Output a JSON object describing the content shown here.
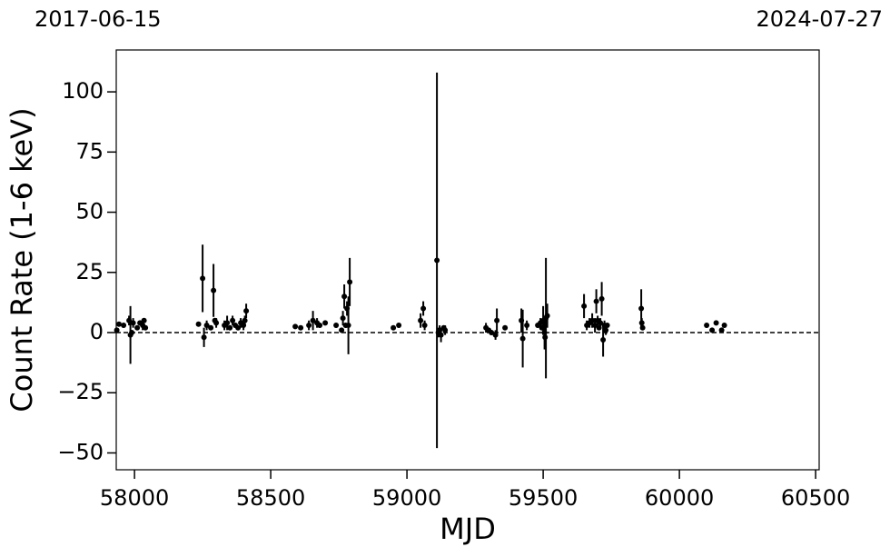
{
  "chart_data": {
    "type": "errorbar",
    "xlabel": "MJD",
    "ylabel": "Count Rate (1-6 keV)",
    "annotations": [
      "2017-06-15",
      "2024-07-27"
    ],
    "xlim": [
      57933,
      60513
    ],
    "ylim": [
      -57,
      117.4
    ],
    "xticks": [
      58000,
      58500,
      59000,
      59500,
      60000,
      60500
    ],
    "yticks": [
      {
        "value": -50,
        "label": "−50"
      },
      {
        "value": -25,
        "label": "−25"
      },
      0,
      25,
      50,
      75,
      100
    ],
    "hline": 0,
    "grid": false,
    "series": [
      {
        "color": "#000000",
        "x": [
          57943,
          57960,
          57980,
          57985,
          57990,
          57995,
          58010,
          58030,
          58035,
          58040,
          57935,
          58020,
          58235,
          58250,
          58255,
          58265,
          58280,
          58290,
          58300,
          58295,
          58330,
          58340,
          58350,
          58360,
          58370,
          58380,
          58390,
          58400,
          58410,
          58405,
          58590,
          58610,
          58640,
          58655,
          58670,
          58680,
          58700,
          58740,
          58760,
          58765,
          58770,
          58775,
          58780,
          58785,
          58790,
          58950,
          58970,
          59050,
          59060,
          59065,
          59110,
          59115,
          59120,
          59125,
          59135,
          59140,
          59290,
          59300,
          59310,
          59330,
          59325,
          59360,
          59420,
          59425,
          59440,
          59480,
          59490,
          59495,
          59500,
          59505,
          59510,
          59515,
          59507,
          59650,
          59660,
          59670,
          59680,
          59690,
          59695,
          59700,
          59705,
          59710,
          59715,
          59720,
          59725,
          59730,
          59735,
          59860,
          59862,
          59865,
          60100,
          60120,
          60135,
          60155,
          60165
        ],
        "values": [
          3.5,
          3,
          5,
          -1,
          0,
          4,
          2,
          3,
          5,
          2,
          1,
          4,
          3.5,
          22.5,
          -2,
          3,
          2,
          17.5,
          4,
          5,
          3,
          4,
          2,
          5,
          3,
          2,
          4,
          3,
          9,
          5,
          2.5,
          2,
          3,
          5,
          4,
          3,
          4,
          3,
          1,
          6,
          15,
          3,
          10,
          3,
          21,
          2,
          3,
          5,
          10,
          3,
          30,
          0,
          1,
          -1,
          2,
          1,
          2,
          1,
          0,
          5,
          -1,
          2,
          5,
          -2.5,
          3,
          3,
          4,
          2,
          5,
          0,
          6,
          7,
          -2,
          11,
          3,
          4,
          5,
          3,
          13,
          5,
          2,
          4,
          14,
          -3,
          3,
          1,
          3,
          10,
          4,
          2,
          3,
          1,
          4,
          1,
          3
        ],
        "errors": [
          1,
          1,
          2,
          12,
          1,
          2,
          1,
          2,
          1,
          1,
          1,
          1,
          1,
          14,
          4,
          2,
          1,
          11,
          2,
          1,
          2,
          3,
          1,
          2,
          1,
          1,
          2,
          2,
          3,
          2,
          1,
          1,
          2,
          4,
          2,
          1,
          1,
          1,
          1,
          3,
          5,
          1,
          3,
          12,
          10,
          1,
          1,
          3,
          3,
          2,
          78,
          2,
          2,
          3,
          1,
          2,
          2,
          1,
          1,
          5,
          2,
          1,
          5,
          12,
          2,
          1,
          2,
          1,
          6,
          7,
          25,
          5,
          5,
          5,
          2,
          2,
          3,
          3,
          5,
          2,
          1,
          2,
          7,
          7,
          2,
          2,
          1,
          8,
          2,
          1,
          1,
          1,
          1,
          1,
          1
        ]
      }
    ]
  }
}
